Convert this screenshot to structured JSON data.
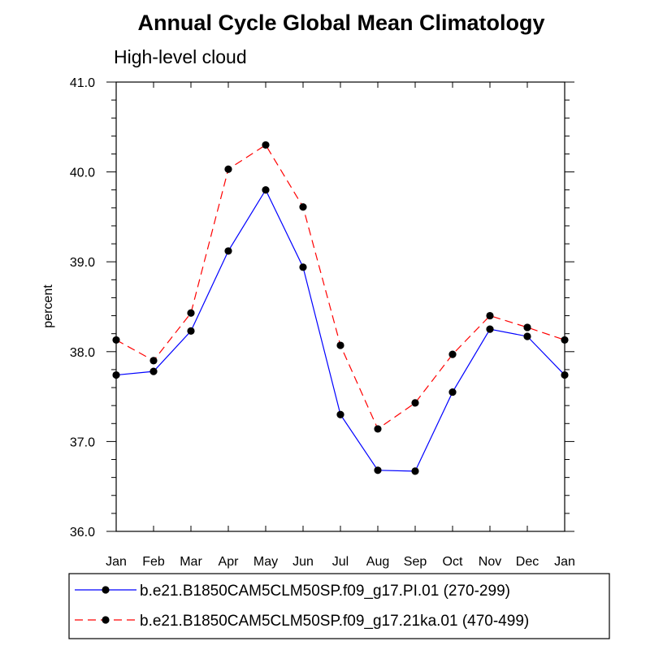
{
  "chart_data": {
    "type": "line",
    "title": "Annual Cycle Global Mean Climatology",
    "subtitle": "High-level cloud",
    "xlabel": "",
    "ylabel": "percent",
    "categories": [
      "Jan",
      "Feb",
      "Mar",
      "Apr",
      "May",
      "Jun",
      "Jul",
      "Aug",
      "Sep",
      "Oct",
      "Nov",
      "Dec",
      "Jan"
    ],
    "ylim": [
      36.0,
      41.0
    ],
    "yticks": [
      "36.0",
      "37.0",
      "38.0",
      "39.0",
      "40.0",
      "41.0"
    ],
    "grid": false,
    "series": [
      {
        "name": "b.e21.B1850CAM5CLM50SP.f09_g17.PI.01 (270-299)",
        "color": "#0000ff",
        "dash": "solid",
        "values": [
          37.74,
          37.78,
          38.23,
          39.12,
          39.8,
          38.94,
          37.3,
          36.68,
          36.67,
          37.55,
          38.25,
          38.17,
          37.74
        ]
      },
      {
        "name": "b.e21.B1850CAM5CLM50SP.f09_g17.21ka.01 (470-499)",
        "color": "#ff0000",
        "dash": "dashed",
        "values": [
          38.13,
          37.9,
          38.43,
          40.03,
          40.3,
          39.61,
          38.07,
          37.14,
          37.43,
          37.97,
          38.4,
          38.27,
          38.13
        ]
      }
    ],
    "legend_position": "bottom"
  }
}
